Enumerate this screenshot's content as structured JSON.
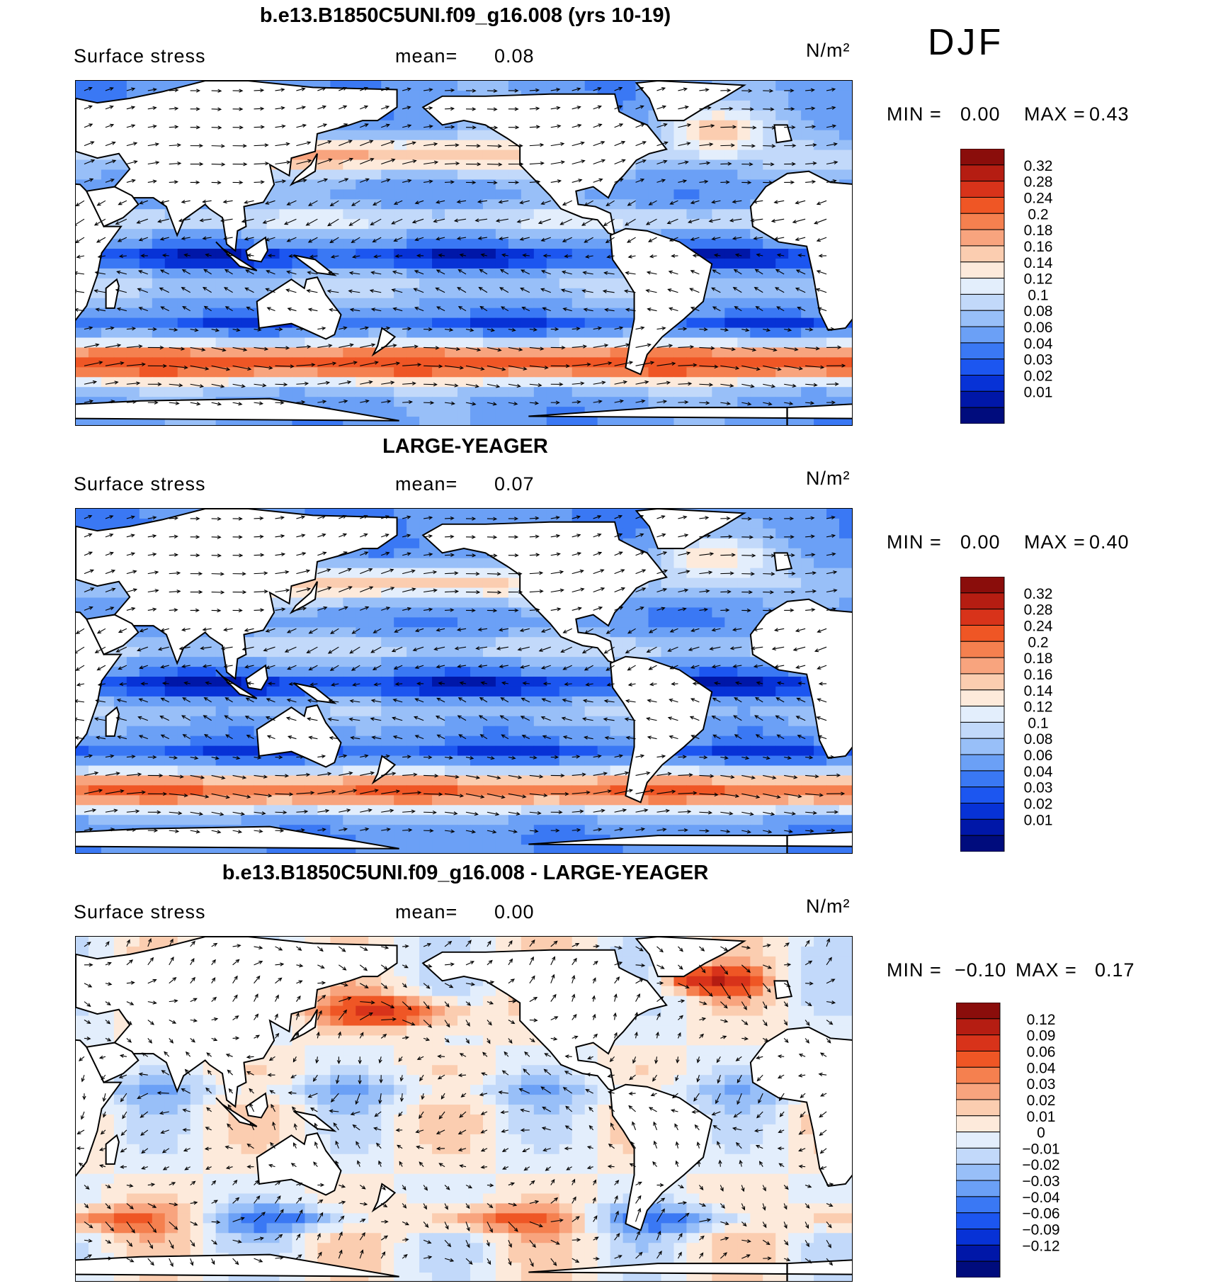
{
  "season": "DJF",
  "colors": {
    "abs_scale": [
      "#000c7d",
      "#0017a8",
      "#0732d6",
      "#1c56f0",
      "#3a78f4",
      "#6ba0f6",
      "#98bff8",
      "#c2d9fa",
      "#e3eefc",
      "#fdeadb",
      "#fbcdb0",
      "#f8a47e",
      "#f5804f",
      "#ef5625",
      "#d8331a",
      "#b51d12",
      "#8a0d0b"
    ],
    "diff_scale": [
      "#000c7d",
      "#0017a8",
      "#0732d6",
      "#1c56f0",
      "#3a78f4",
      "#6ba0f6",
      "#98bff8",
      "#c2d9fa",
      "#e3eefc",
      "#fdeadb",
      "#fbcdb0",
      "#f8a47e",
      "#f5804f",
      "#ef5625",
      "#d8331a",
      "#b51d12",
      "#8a0d0b"
    ],
    "land": "#ffffff"
  },
  "chart_data": [
    {
      "type": "heatmap",
      "title": "b.e13.B1850C5UNI.f09_g16.008 (yrs 10-19)",
      "field": "Surface stress",
      "mean_label": "mean=",
      "mean": "0.08",
      "units": "N/m²",
      "min_label": "MIN =",
      "min": "0.00",
      "max_label": "MAX =",
      "max": "0.43",
      "colorbar_levels": [
        "0.32",
        "0.28",
        "0.24",
        "0.2",
        "0.18",
        "0.16",
        "0.14",
        "0.12",
        "0.1",
        "0.08",
        "0.06",
        "0.04",
        "0.03",
        "0.02",
        "0.01"
      ]
    },
    {
      "type": "heatmap",
      "title": "LARGE-YEAGER",
      "field": "Surface stress",
      "mean_label": "mean=",
      "mean": "0.07",
      "units": "N/m²",
      "min_label": "MIN =",
      "min": "0.00",
      "max_label": "MAX =",
      "max": "0.40",
      "colorbar_levels": [
        "0.32",
        "0.28",
        "0.24",
        "0.2",
        "0.18",
        "0.16",
        "0.14",
        "0.12",
        "0.1",
        "0.08",
        "0.06",
        "0.04",
        "0.03",
        "0.02",
        "0.01"
      ]
    },
    {
      "type": "heatmap",
      "title": "b.e13.B1850C5UNI.f09_g16.008 - LARGE-YEAGER",
      "field": "Surface stress",
      "mean_label": "mean=",
      "mean": "0.00",
      "units": "N/m²",
      "min_label": "MIN =",
      "min": "−0.10",
      "max_label": "MAX =",
      "max": "0.17",
      "colorbar_levels": [
        "0.12",
        "0.09",
        "0.06",
        "0.04",
        "0.03",
        "0.02",
        "0.01",
        "0",
        "−0.01",
        "−0.02",
        "−0.03",
        "−0.04",
        "−0.06",
        "−0.09",
        "−0.12"
      ]
    }
  ]
}
